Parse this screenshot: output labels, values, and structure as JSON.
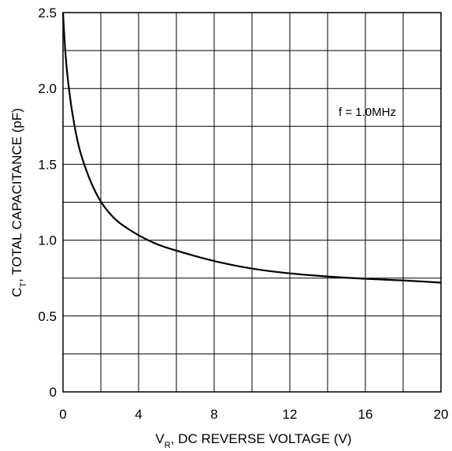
{
  "chart_data": {
    "type": "line",
    "title": "",
    "xlabel": {
      "prefix": "V",
      "sub": "R",
      "text": ", DC REVERSE VOLTAGE (V)"
    },
    "ylabel": {
      "prefix": "C",
      "sub": "T",
      "text": ", TOTAL CAPACITANCE (pF)"
    },
    "xlim": [
      0,
      20
    ],
    "ylim": [
      0,
      2.5
    ],
    "x_ticks": [
      0,
      4,
      8,
      12,
      16,
      20
    ],
    "x_tick_labels": [
      "0",
      "4",
      "8",
      "12",
      "16",
      "20"
    ],
    "y_ticks": [
      0,
      0.5,
      1.0,
      1.5,
      2.0,
      2.5
    ],
    "y_tick_labels": [
      "0",
      "0.5",
      "1.0",
      "1.5",
      "2.0",
      "2.5"
    ],
    "x_grid_step": 2,
    "y_grid_step": 0.25,
    "grid": true,
    "annotation": "f = 1.0MHz",
    "series": [
      {
        "x": [
          0,
          0.1,
          0.2,
          0.35,
          0.5,
          0.75,
          1,
          1.5,
          2,
          2.5,
          3,
          4,
          5,
          6,
          8,
          10,
          12,
          14,
          16,
          18,
          20
        ],
        "y": [
          2.5,
          2.28,
          2.12,
          1.96,
          1.83,
          1.66,
          1.54,
          1.37,
          1.25,
          1.17,
          1.11,
          1.03,
          0.97,
          0.93,
          0.86,
          0.81,
          0.78,
          0.76,
          0.745,
          0.735,
          0.72
        ]
      }
    ]
  }
}
